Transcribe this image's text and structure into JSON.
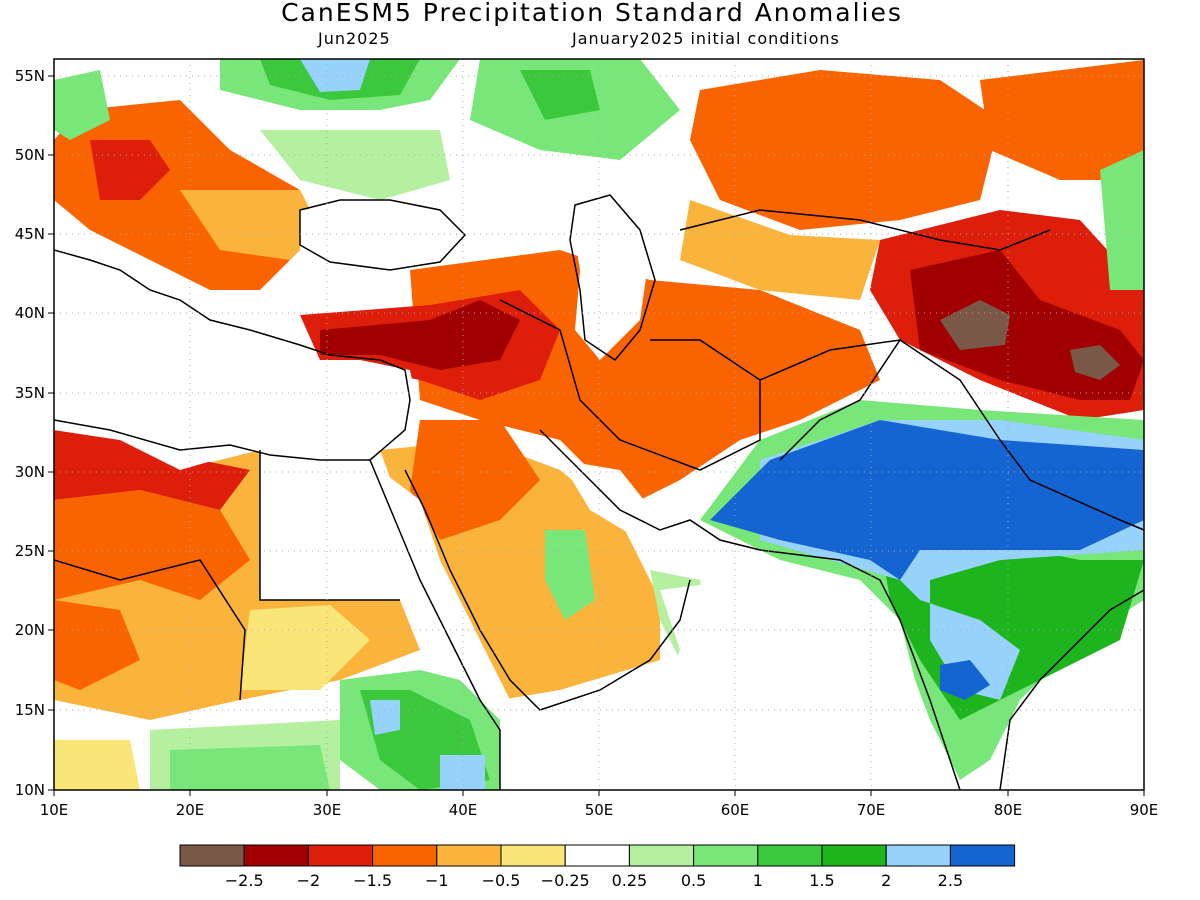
{
  "title": "CanESM5 Precipitation Standard Anomalies",
  "subtitle_left": "Jun2025",
  "subtitle_right": "January2025 initial conditions",
  "map": {
    "lon_ticks": [
      "10E",
      "20E",
      "30E",
      "40E",
      "50E",
      "60E",
      "70E",
      "80E",
      "90E"
    ],
    "lat_ticks": [
      "55N",
      "50N",
      "45N",
      "40N",
      "35N",
      "30N",
      "25N",
      "20N",
      "15N",
      "10N"
    ],
    "lon_range": [
      10,
      90
    ],
    "lat_range": [
      10,
      56
    ],
    "grid": "dotted"
  },
  "colorbar": {
    "labels": [
      "−2.5",
      "−2",
      "−1.5",
      "−1",
      "−0.5",
      "−0.25",
      "0.25",
      "0.5",
      "1",
      "1.5",
      "2",
      "2.5"
    ],
    "colors": [
      "#7a5848",
      "#a00000",
      "#dc1e0a",
      "#fa6400",
      "#fab43c",
      "#fae678",
      "#ffffff",
      "#b4f0a0",
      "#78e678",
      "#3cc83c",
      "#1eb41e",
      "#96d2fa",
      "#1464d2"
    ]
  }
}
